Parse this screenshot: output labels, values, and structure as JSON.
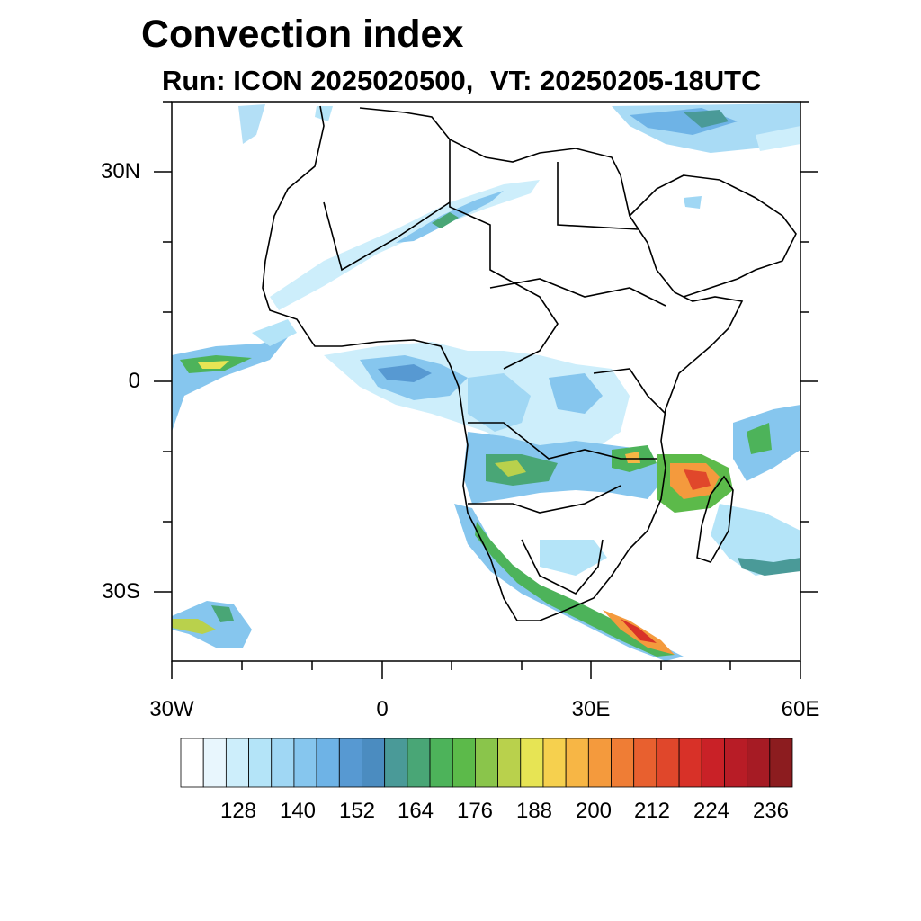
{
  "title": "Convection index",
  "subtitle": {
    "run": "Run: ICON 2025020500,",
    "valid_time": "VT: 20250205-18UTC"
  },
  "axes": {
    "x_ticks": [
      "30W",
      "0",
      "30E",
      "60E"
    ],
    "y_ticks": [
      "30N",
      "0",
      "30S"
    ],
    "x_range_deg": [
      -30,
      60
    ],
    "y_range_deg": [
      -40,
      40
    ]
  },
  "colorbar": {
    "labels": [
      "128",
      "140",
      "152",
      "164",
      "176",
      "188",
      "200",
      "212",
      "224",
      "236"
    ],
    "colors": [
      "#ffffff",
      "#e8f6fd",
      "#cdeefb",
      "#b4e4f8",
      "#a0d7f4",
      "#86c6ee",
      "#6eb3e6",
      "#5799d2",
      "#4b8cc0",
      "#4a9a98",
      "#49a676",
      "#4db35a",
      "#5cba4a",
      "#8ac54b",
      "#b9d14c",
      "#e7e454",
      "#f6d04e",
      "#f7b645",
      "#f49a3d",
      "#ef7d35",
      "#e8602f",
      "#e0472b",
      "#d83128",
      "#c92127",
      "#b81c26",
      "#a61b24",
      "#8c1c1f"
    ]
  }
}
